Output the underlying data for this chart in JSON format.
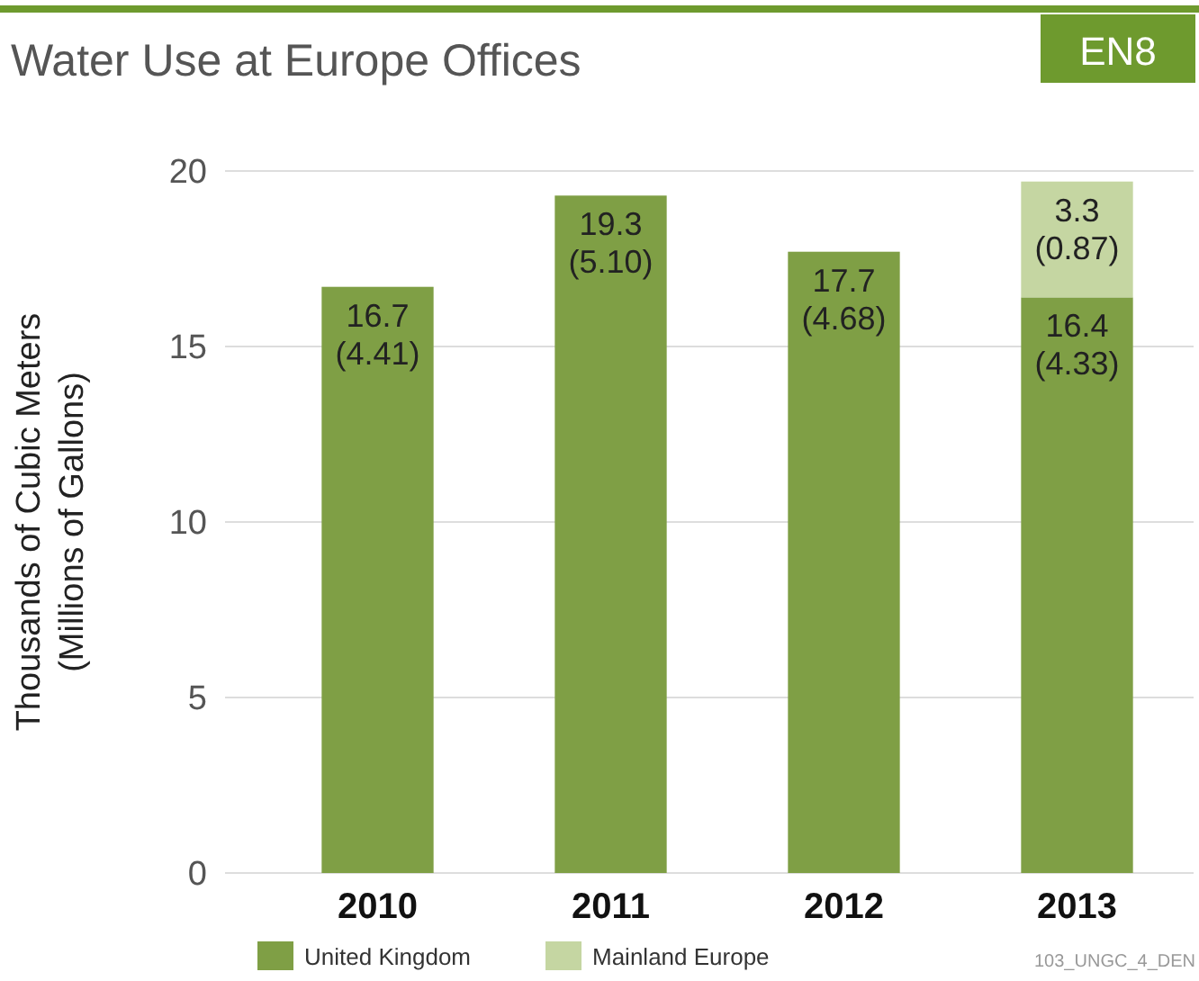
{
  "chart_data": {
    "type": "bar",
    "title": "Water Use at Europe Offices",
    "ylabel": "Thousands of Cubic Meters\n(Millions of Gallons)",
    "annotations": [
      "EN8",
      "103_UNGC_4_DEN"
    ],
    "categories": [
      "2010",
      "2011",
      "2012",
      "2013"
    ],
    "stacked": true,
    "series": [
      {
        "name": "United Kingdom",
        "color": "#7f9f45",
        "values": [
          16.7,
          19.3,
          17.7,
          16.4
        ],
        "value_labels": [
          "16.7\n(4.41)",
          "19.3\n(5.10)",
          "17.7\n(4.68)",
          "16.4\n(4.33)"
        ]
      },
      {
        "name": "Mainland Europe",
        "color": "#c5d6a2",
        "values": [
          null,
          null,
          null,
          3.3
        ],
        "value_labels": [
          null,
          null,
          null,
          "3.3\n(0.87)"
        ]
      }
    ],
    "ylim": [
      0,
      20
    ],
    "yticks": [
      0,
      5,
      10,
      15,
      20
    ],
    "grid": "y",
    "legend": "bottom left"
  }
}
